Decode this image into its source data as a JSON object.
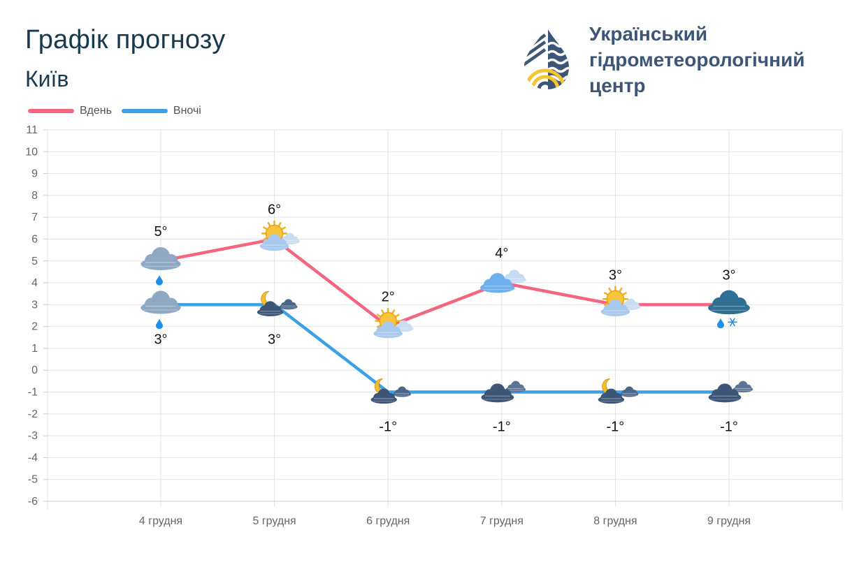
{
  "header": {
    "title": "Графік прогнозу",
    "city": "Київ",
    "org_line1": "Український",
    "org_line2": "гідрометеорологічний",
    "org_line3": "центр"
  },
  "colors": {
    "day": "#f46580",
    "night": "#3ba0e6",
    "grid": "#e3e3e3",
    "title": "#173a4f",
    "org": "#3d5577",
    "logo_navy": "#3d5577",
    "logo_yellow": "#f5c431"
  },
  "chart_data": {
    "type": "line",
    "categories": [
      "4 грудня",
      "5 грудня",
      "6 грудня",
      "7 грудня",
      "8 грудня",
      "9 грудня"
    ],
    "ylim": [
      -6,
      11
    ],
    "yticks": [
      11,
      10,
      9,
      8,
      7,
      6,
      5,
      4,
      3,
      2,
      1,
      0,
      -1,
      -2,
      -3,
      -4,
      -5,
      -6
    ],
    "grid": true,
    "legend_position": "top-left",
    "series": [
      {
        "key": "day",
        "name": "Вдень",
        "values": [
          5,
          6,
          2,
          4,
          3,
          3
        ],
        "labels": [
          "5°",
          "6°",
          "2°",
          "4°",
          "3°",
          "3°"
        ],
        "icons": [
          "cloudy-rain-icon",
          "partly-cloudy-day-icon",
          "partly-cloudy-day-icon",
          "cloudy-icon",
          "partly-cloudy-day-icon",
          "cloudy-rain-snow-icon"
        ]
      },
      {
        "key": "night",
        "name": "Вночі",
        "values": [
          3,
          3,
          -1,
          -1,
          -1,
          -1
        ],
        "labels": [
          "3°",
          "3°",
          "-1°",
          "-1°",
          "-1°",
          "-1°"
        ],
        "icons": [
          "cloudy-rain-icon",
          "partly-cloudy-night-icon",
          "partly-cloudy-night-icon",
          "cloudy-night-icon",
          "partly-cloudy-night-icon",
          "cloudy-night-icon"
        ]
      }
    ]
  }
}
